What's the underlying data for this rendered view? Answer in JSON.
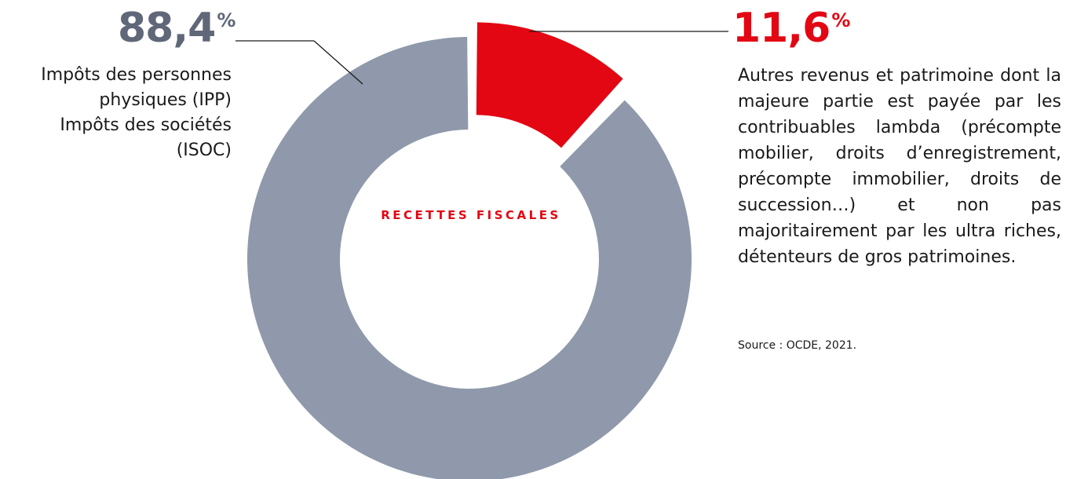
{
  "chart_data": {
    "type": "pie",
    "categories": [
      "Impôts des personnes physiques (IPP) Impôts des sociétés (ISOC)",
      "Autres revenus et patrimoine"
    ],
    "values": [
      88.4,
      11.6
    ],
    "center_label": "RECETTES FISCALES",
    "labels": {
      "left": {
        "value": "88,4",
        "unit": "%",
        "lines": [
          "Impôts des personnes",
          "physiques (IPP)",
          "Impôts des sociétés",
          "(ISOC)"
        ]
      },
      "right": {
        "value": "11,6",
        "unit": "%",
        "text": "Autres revenus et patrimoine dont la majeure partie est payée par les contribuables lambda (précompte mobilier, droits d’enregistrement, précompte immobilier, droits de succession…) et non pas majoritairement par les ultra riches, détenteurs de gros patrimoines."
      }
    },
    "source": "Source : OCDE, 2021."
  },
  "colors": {
    "main_slice": "#8f99ab",
    "highlight_slice": "#e30613",
    "left_pct": "#5f6778",
    "right_pct": "#e30613"
  }
}
